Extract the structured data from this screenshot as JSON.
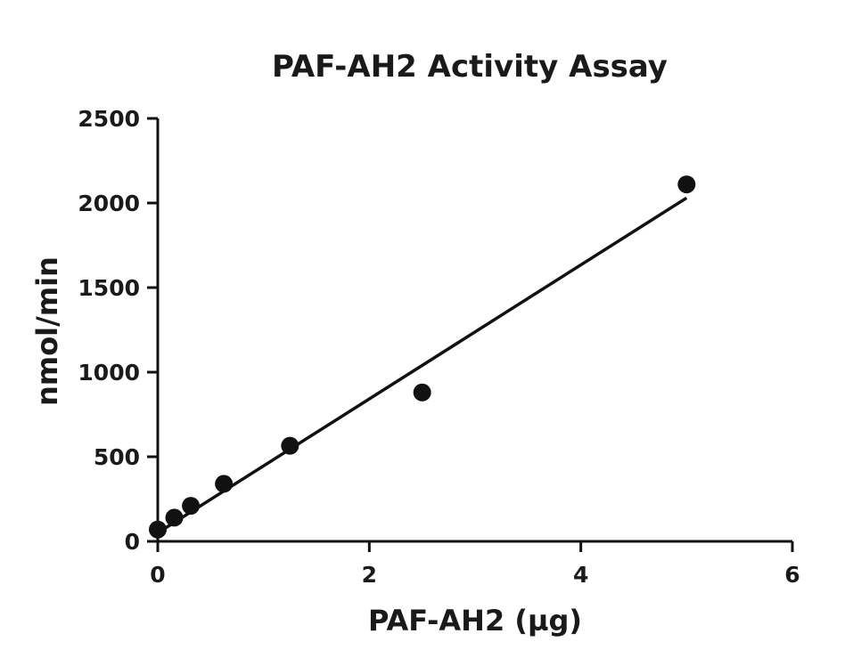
{
  "chart_data": {
    "type": "scatter",
    "title": "PAF-AH2 Activity Assay",
    "xlabel": "PAF-AH2 (µg)",
    "ylabel": "nmol/min",
    "xlim": [
      0,
      6
    ],
    "ylim": [
      0,
      2500
    ],
    "xticks": [
      0,
      2,
      4,
      6
    ],
    "yticks": [
      0,
      500,
      1000,
      1500,
      2000,
      2500
    ],
    "grid": false,
    "points": [
      {
        "x": 0,
        "y": 70
      },
      {
        "x": 0.156,
        "y": 140
      },
      {
        "x": 0.3125,
        "y": 210
      },
      {
        "x": 0.625,
        "y": 340
      },
      {
        "x": 1.25,
        "y": 565
      },
      {
        "x": 2.5,
        "y": 880
      },
      {
        "x": 5,
        "y": 2110
      }
    ],
    "fit_line": {
      "x": [
        0,
        5
      ],
      "y": [
        50,
        2030
      ]
    },
    "colors": {
      "points": "#111111",
      "line": "#111111",
      "axes": "#111111",
      "text": "#1a1a1a"
    }
  }
}
